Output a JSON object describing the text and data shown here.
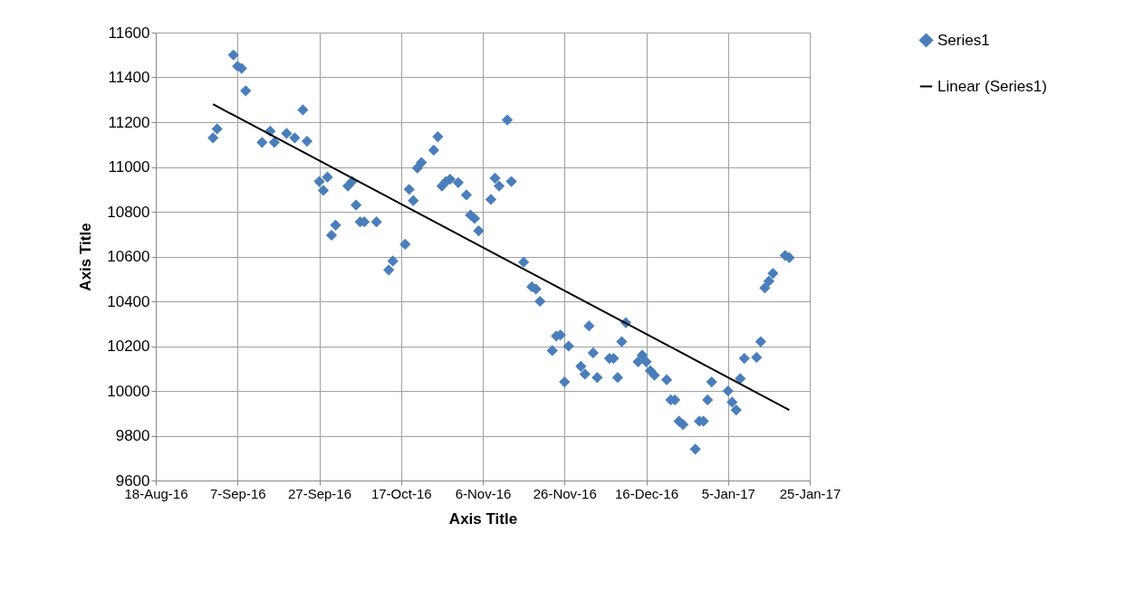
{
  "chart_data": {
    "type": "scatter",
    "xlabel": "Axis Title",
    "ylabel": "Axis Title",
    "xlim": [
      "2016-08-18",
      "2017-01-25"
    ],
    "xticks": [
      {
        "value": "2016-08-18",
        "label": "18-Aug-16"
      },
      {
        "value": "2016-09-07",
        "label": "7-Sep-16"
      },
      {
        "value": "2016-09-27",
        "label": "27-Sep-16"
      },
      {
        "value": "2016-10-17",
        "label": "17-Oct-16"
      },
      {
        "value": "2016-11-06",
        "label": "6-Nov-16"
      },
      {
        "value": "2016-11-26",
        "label": "26-Nov-16"
      },
      {
        "value": "2016-12-16",
        "label": "16-Dec-16"
      },
      {
        "value": "2017-01-05",
        "label": "5-Jan-17"
      },
      {
        "value": "2017-01-25",
        "label": "25-Jan-17"
      }
    ],
    "ylim": [
      9600,
      11600
    ],
    "yticks": [
      9600,
      9800,
      10000,
      10200,
      10400,
      10600,
      10800,
      11000,
      11200,
      11400,
      11600
    ],
    "grid": true,
    "legend": "right",
    "marker": "diamond",
    "series": [
      {
        "name": "Series1",
        "color": "#4a7ebb",
        "x": [
          "2016-09-01",
          "2016-09-02",
          "2016-09-06",
          "2016-09-07",
          "2016-09-08",
          "2016-09-09",
          "2016-09-13",
          "2016-09-15",
          "2016-09-16",
          "2016-09-19",
          "2016-09-21",
          "2016-09-23",
          "2016-09-24",
          "2016-09-27",
          "2016-09-28",
          "2016-09-29",
          "2016-09-30",
          "2016-10-01",
          "2016-10-04",
          "2016-10-05",
          "2016-10-06",
          "2016-10-07",
          "2016-10-08",
          "2016-10-11",
          "2016-10-14",
          "2016-10-15",
          "2016-10-18",
          "2016-10-19",
          "2016-10-20",
          "2016-10-21",
          "2016-10-22",
          "2016-10-25",
          "2016-10-26",
          "2016-10-27",
          "2016-10-28",
          "2016-10-29",
          "2016-10-31",
          "2016-11-02",
          "2016-11-03",
          "2016-11-04",
          "2016-11-05",
          "2016-11-08",
          "2016-11-09",
          "2016-11-10",
          "2016-11-12",
          "2016-11-13",
          "2016-11-16",
          "2016-11-18",
          "2016-11-19",
          "2016-11-20",
          "2016-11-23",
          "2016-11-24",
          "2016-11-25",
          "2016-11-26",
          "2016-11-27",
          "2016-11-30",
          "2016-12-01",
          "2016-12-02",
          "2016-12-03",
          "2016-12-04",
          "2016-12-07",
          "2016-12-08",
          "2016-12-09",
          "2016-12-10",
          "2016-12-11",
          "2016-12-14",
          "2016-12-15",
          "2016-12-16",
          "2016-12-17",
          "2016-12-18",
          "2016-12-21",
          "2016-12-22",
          "2016-12-23",
          "2016-12-24",
          "2016-12-25",
          "2016-12-28",
          "2016-12-29",
          "2016-12-30",
          "2016-12-31",
          "2017-01-01",
          "2017-01-05",
          "2017-01-06",
          "2017-01-07",
          "2017-01-08",
          "2017-01-09",
          "2017-01-12",
          "2017-01-13",
          "2017-01-14",
          "2017-01-15",
          "2017-01-16",
          "2017-01-19",
          "2017-01-20"
        ],
        "values": [
          11130,
          11170,
          11500,
          11450,
          11440,
          11340,
          11110,
          11160,
          11110,
          11150,
          11130,
          11255,
          11115,
          10935,
          10895,
          10955,
          10695,
          10740,
          10915,
          10935,
          10830,
          10755,
          10755,
          10755,
          10540,
          10580,
          10655,
          10900,
          10850,
          10995,
          11020,
          11075,
          11135,
          10915,
          10935,
          10945,
          10930,
          10875,
          10785,
          10770,
          10715,
          10855,
          10950,
          10915,
          11210,
          10935,
          10575,
          10465,
          10455,
          10400,
          10180,
          10245,
          10250,
          10040,
          10200,
          10110,
          10075,
          10290,
          10170,
          10060,
          10145,
          10145,
          10060,
          10220,
          10305,
          10130,
          10160,
          10130,
          10090,
          10070,
          10050,
          9960,
          9960,
          9865,
          9850,
          9740,
          9865,
          9865,
          9960,
          10040,
          10000,
          9950,
          9915,
          10055,
          10145,
          10150,
          10220,
          10460,
          10490,
          10525,
          10605,
          10595
        ]
      },
      {
        "name": "Linear (Series1)",
        "color": "#000000",
        "type": "line",
        "line_style": "solid",
        "marker": "none",
        "x": [
          "2016-09-01",
          "2017-01-20"
        ],
        "values": [
          11280,
          9915
        ]
      }
    ]
  }
}
